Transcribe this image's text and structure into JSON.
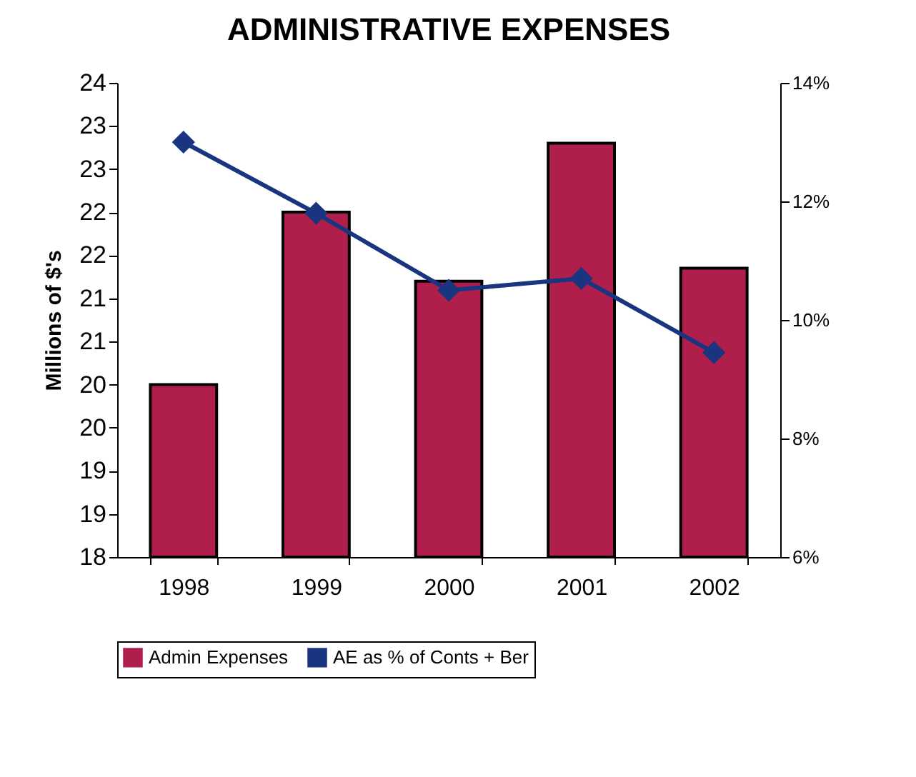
{
  "chart_data": {
    "type": "bar",
    "title": "ADMINISTRATIVE EXPENSES",
    "ylabel": "Millions of $'s",
    "categories": [
      "1998",
      "1999",
      "2000",
      "2001",
      "2002"
    ],
    "series": [
      {
        "name": "Admin Expenses",
        "color": "#b01f4c",
        "values": [
          20.0,
          22.0,
          21.2,
          22.8,
          21.35
        ]
      },
      {
        "name": "AE as % of Conts + Ber",
        "type": "line",
        "axis": "y2",
        "color": "#1a3580",
        "values": [
          13.0,
          11.8,
          10.5,
          10.7,
          9.45
        ]
      }
    ],
    "ylim": [
      18,
      23.5
    ],
    "yticks": [
      {
        "value": 18,
        "label": "18"
      },
      {
        "value": 18.5,
        "label": "19"
      },
      {
        "value": 19,
        "label": "19"
      },
      {
        "value": 19.5,
        "label": "20"
      },
      {
        "value": 20,
        "label": "20"
      },
      {
        "value": 20.5,
        "label": "21"
      },
      {
        "value": 21,
        "label": "21"
      },
      {
        "value": 21.5,
        "label": "22"
      },
      {
        "value": 22,
        "label": "22"
      },
      {
        "value": 22.5,
        "label": "23"
      },
      {
        "value": 23,
        "label": "23"
      },
      {
        "value": 23.5,
        "label": "24"
      }
    ],
    "y2lim": [
      6,
      14
    ],
    "y2ticks": [
      {
        "value": 6,
        "label": "6%"
      },
      {
        "value": 8,
        "label": "8%"
      },
      {
        "value": 10,
        "label": "10%"
      },
      {
        "value": 12,
        "label": "12%"
      },
      {
        "value": 14,
        "label": "14%"
      }
    ],
    "marker": "diamond",
    "grid": false,
    "legend": "bottom"
  }
}
